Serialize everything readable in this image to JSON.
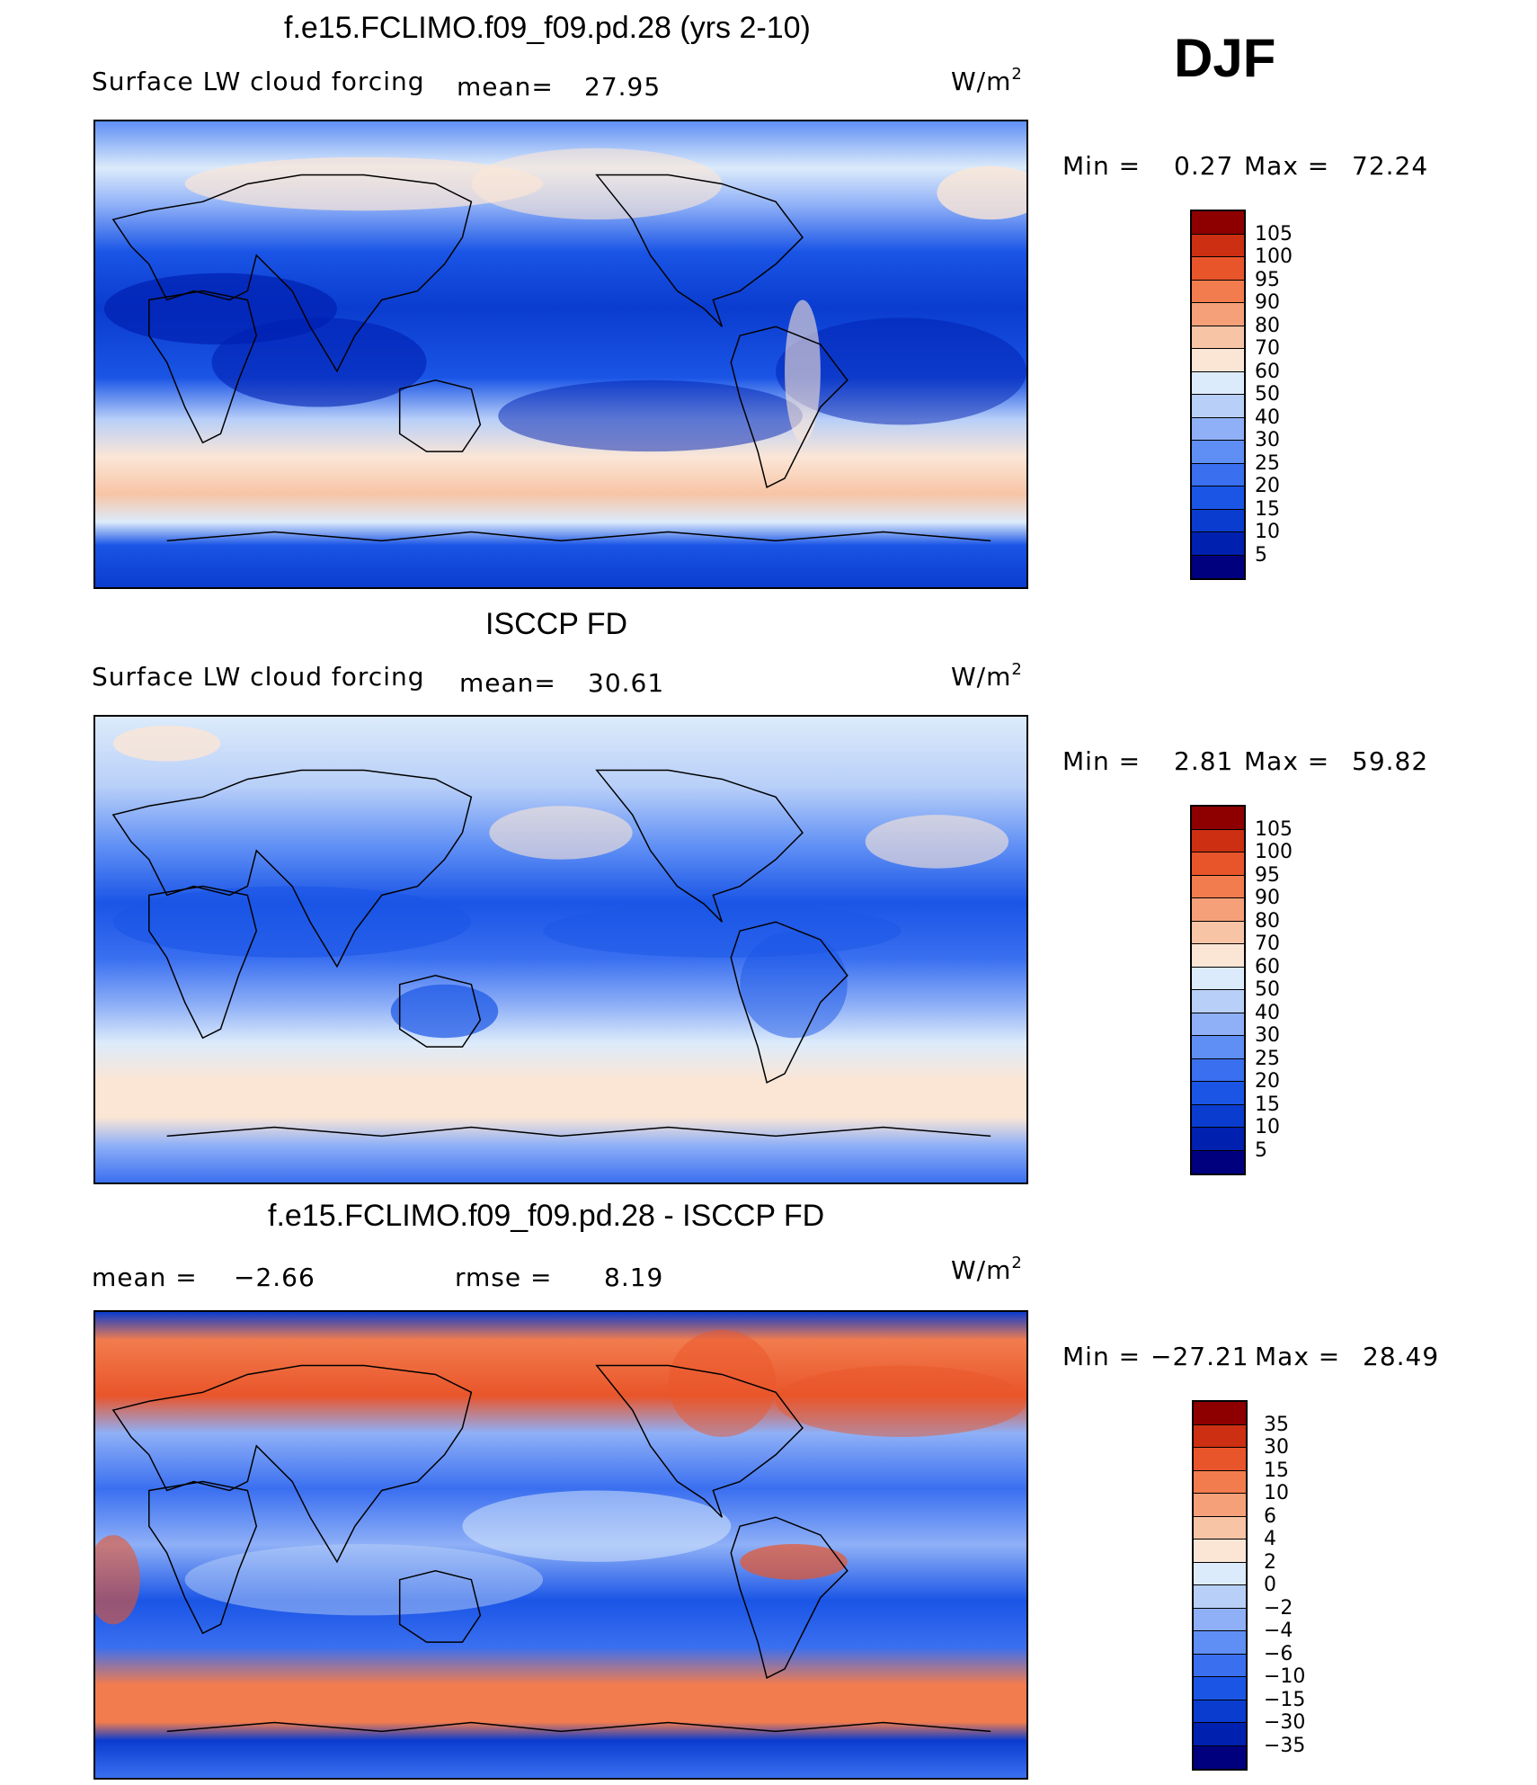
{
  "season": "DJF",
  "units": "W/m",
  "units_sup": "2",
  "panels": [
    {
      "title": "f.e15.FCLIMO.f09_f09.pd.28 (yrs 2-10)",
      "variable": "Surface LW cloud forcing",
      "stat1_label": "mean=",
      "stat1_value": "27.95",
      "min_label": "Min =",
      "min_value": "0.27",
      "max_label": "Max =",
      "max_value": "72.24",
      "levels": [
        "105",
        "100",
        "95",
        "90",
        "80",
        "70",
        "60",
        "50",
        "40",
        "30",
        "25",
        "20",
        "15",
        "10",
        "5"
      ]
    },
    {
      "title": "ISCCP FD",
      "variable": "Surface LW cloud forcing",
      "stat1_label": "mean=",
      "stat1_value": "30.61",
      "min_label": "Min =",
      "min_value": "2.81",
      "max_label": "Max =",
      "max_value": "59.82",
      "levels": [
        "105",
        "100",
        "95",
        "90",
        "80",
        "70",
        "60",
        "50",
        "40",
        "30",
        "25",
        "20",
        "15",
        "10",
        "5"
      ]
    },
    {
      "title": "f.e15.FCLIMO.f09_f09.pd.28 - ISCCP FD",
      "stat1_label": "mean =",
      "stat1_value": "−2.66",
      "stat2_label": "rmse =",
      "stat2_value": "8.19",
      "min_label": "Min =",
      "min_value": "−27.21",
      "max_label": "Max =",
      "max_value": "28.49",
      "levels": [
        "35",
        "30",
        "15",
        "10",
        "6",
        "4",
        "2",
        "0",
        "−2",
        "−4",
        "−6",
        "−10",
        "−15",
        "−30",
        "−35"
      ]
    }
  ],
  "colors": {
    "scale": [
      "#00007f",
      "#0020b0",
      "#0a3ccf",
      "#1a55e6",
      "#3a6ff0",
      "#5f8ff5",
      "#8fb0f7",
      "#b8cff8",
      "#dcebfb",
      "#fbe6d6",
      "#f8c4a6",
      "#f6a07a",
      "#f27c4e",
      "#e9552a",
      "#cc2f12",
      "#8e0000"
    ]
  },
  "chart_data": [
    {
      "type": "heatmap",
      "title": "f.e15.FCLIMO.f09_f09.pd.28 (yrs 2-10)",
      "variable": "Surface LW cloud forcing",
      "units": "W/m2",
      "mean": 27.95,
      "min": 0.27,
      "max": 72.24,
      "contour_levels": [
        5,
        10,
        15,
        20,
        25,
        30,
        40,
        50,
        60,
        70,
        80,
        90,
        95,
        100,
        105
      ]
    },
    {
      "type": "heatmap",
      "title": "ISCCP FD",
      "variable": "Surface LW cloud forcing",
      "units": "W/m2",
      "mean": 30.61,
      "min": 2.81,
      "max": 59.82,
      "contour_levels": [
        5,
        10,
        15,
        20,
        25,
        30,
        40,
        50,
        60,
        70,
        80,
        90,
        95,
        100,
        105
      ]
    },
    {
      "type": "heatmap",
      "title": "f.e15.FCLIMO.f09_f09.pd.28 - ISCCP FD",
      "units": "W/m2",
      "mean": -2.66,
      "rmse": 8.19,
      "min": -27.21,
      "max": 28.49,
      "contour_levels": [
        -35,
        -30,
        -15,
        -10,
        -6,
        -4,
        -2,
        0,
        2,
        4,
        6,
        10,
        15,
        30,
        35
      ]
    }
  ]
}
